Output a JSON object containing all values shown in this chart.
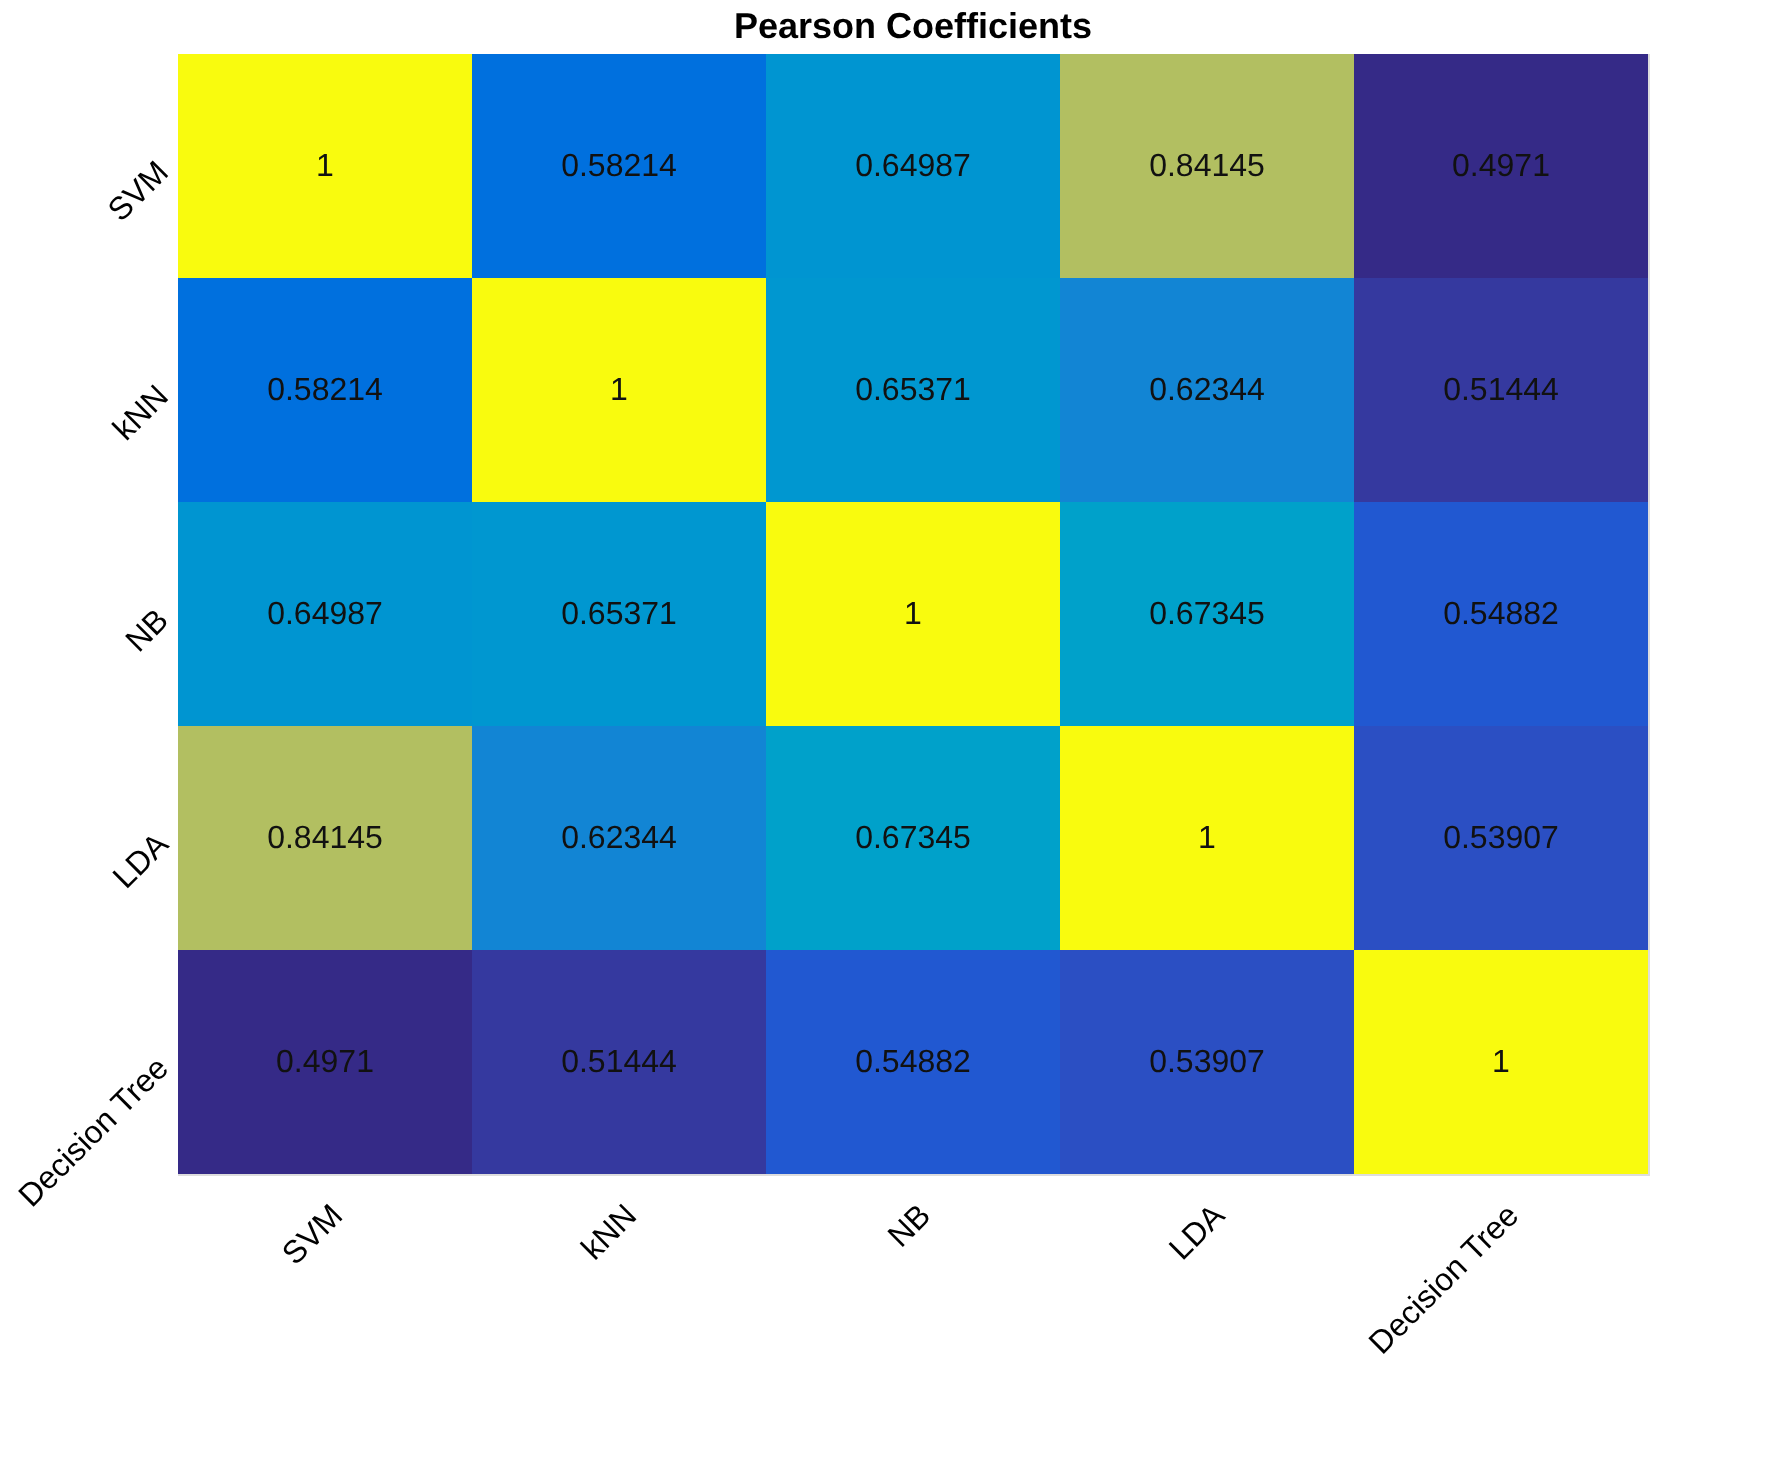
{
  "chart_data": {
    "type": "heatmap",
    "title": "Pearson Coefficients",
    "categories": [
      "SVM",
      "kNN",
      "NB",
      "LDA",
      "Decision Tree"
    ],
    "y_categories": [
      "SVM",
      "kNN",
      "NB",
      "LDA",
      "Decision Tree"
    ],
    "cells": [
      [
        1,
        0.58214,
        0.64987,
        0.84145,
        0.4971
      ],
      [
        0.58214,
        1,
        0.65371,
        0.62344,
        0.51444
      ],
      [
        0.64987,
        0.65371,
        1,
        0.67345,
        0.54882
      ],
      [
        0.84145,
        0.62344,
        0.67345,
        1,
        0.53907
      ],
      [
        0.4971,
        0.51444,
        0.54882,
        0.53907,
        1
      ]
    ],
    "data_labels": true
  }
}
